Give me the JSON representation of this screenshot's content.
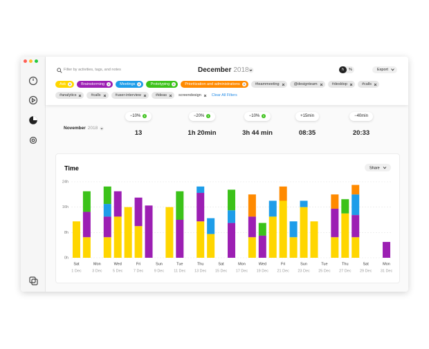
{
  "window": {
    "search_placeholder": "Filter by activities, tags, and notes",
    "month": "December",
    "year": "2018",
    "unit_toggle": [
      "h",
      "%"
    ],
    "export": "Export"
  },
  "filters": {
    "text_tags": [
      "#teammeeting",
      "@designteam",
      "#desktop",
      "#calls",
      "#analytics",
      "#calls",
      "#user-interview",
      "#ideas",
      "screendesign"
    ],
    "clear": "Clear All Filters"
  },
  "summary": {
    "period_month": "November",
    "period_year": "2018",
    "columns": [
      {
        "change": "−10%",
        "value": "13"
      },
      {
        "change": "−20%",
        "value": "1h 20min"
      },
      {
        "change": "−10%",
        "value": "3h 44 min"
      },
      {
        "change": "+15min",
        "value": "08:35"
      },
      {
        "change": "−40min",
        "value": "20:33"
      }
    ]
  },
  "chart_data": {
    "type": "bar",
    "stacked": true,
    "title": "Time",
    "share": "Share",
    "categories": [
      "Sat",
      null,
      "Mon",
      null,
      "Wed",
      null,
      "Fri",
      null,
      "Sun",
      null,
      "Tue",
      null,
      "Thu",
      null,
      "Sat",
      null,
      "Mon",
      null,
      "Wed",
      null,
      "Fri",
      null,
      "Sun",
      null,
      "Tue",
      null,
      "Thu",
      null,
      "Sat",
      null,
      "Mon"
    ],
    "dates": [
      "1 Dec",
      null,
      "3 Dec",
      null,
      "5 Dec",
      null,
      "7 Dec",
      null,
      "9 Dec",
      null,
      "11 Dec",
      null,
      "13 Dec",
      null,
      "15 Dec",
      null,
      "17 Dec",
      null,
      "19 Dec",
      null,
      "21 Dec",
      null,
      "23 Dec",
      null,
      "25 Dec",
      null,
      "27 Dec",
      null,
      "29 Dec",
      null,
      "31 Dec"
    ],
    "series": [
      {
        "name": "Ask",
        "color": "#ffd600",
        "values": [
          11.5,
          6.5,
          0,
          6.5,
          13,
          16,
          10,
          0,
          0,
          16,
          0,
          0,
          11.5,
          7.5,
          0,
          0,
          0,
          6.5,
          0,
          13,
          18,
          6.5,
          16,
          11.5,
          0,
          6.5,
          14,
          6.5,
          0,
          0,
          0
        ]
      },
      {
        "name": "Brainstorming",
        "color": "#9c1fb3",
        "values": [
          0,
          8,
          0,
          6.5,
          8,
          0,
          9,
          16.5,
          0,
          0,
          12,
          0,
          9,
          0,
          0,
          11,
          0,
          6.5,
          7,
          0,
          0,
          0,
          0,
          0,
          0,
          9,
          0,
          7,
          0,
          0,
          5
        ]
      },
      {
        "name": "Meetings",
        "color": "#1e9de9",
        "values": [
          0,
          0,
          0,
          4,
          0,
          0,
          0,
          0,
          0,
          0,
          0,
          0,
          2,
          5,
          0,
          4,
          0,
          0,
          0,
          5,
          0,
          5,
          2,
          0,
          0,
          0,
          0,
          6.5,
          0,
          0,
          0
        ]
      },
      {
        "name": "Prototyping",
        "color": "#3cc21a",
        "values": [
          0,
          6.5,
          0,
          5.5,
          0,
          0,
          0,
          0,
          0,
          0,
          9,
          0,
          0,
          0,
          0,
          6.5,
          0,
          0,
          4,
          0,
          0,
          0,
          0,
          0,
          0,
          0,
          4.5,
          0,
          0,
          0,
          0
        ]
      },
      {
        "name": "Prioritization and administrations",
        "color": "#ff8a00",
        "values": [
          0,
          0,
          0,
          0,
          0,
          0,
          0,
          0,
          0,
          0,
          0,
          0,
          0,
          0,
          0,
          0,
          0,
          7,
          0,
          0,
          4.5,
          0,
          0,
          0,
          0,
          4.5,
          0,
          3,
          0,
          0,
          0
        ]
      }
    ],
    "ylim": [
      0,
      24
    ],
    "yticks": [
      {
        "value": 0,
        "label": "0h"
      },
      {
        "value": 8,
        "label": "8h"
      },
      {
        "value": 16,
        "label": "16h"
      },
      {
        "value": 24,
        "label": "24h"
      }
    ],
    "grid": true
  }
}
